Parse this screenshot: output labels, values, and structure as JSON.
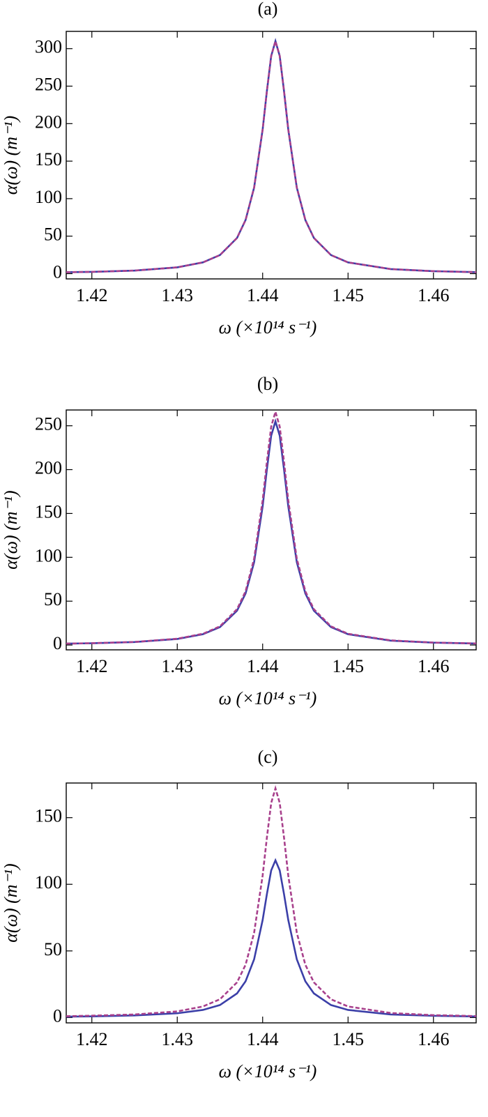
{
  "chart_data": [
    {
      "type": "line",
      "title": "(a)",
      "xlabel": "ω (×10¹⁴ s⁻¹)",
      "ylabel": "α(ω) (m⁻¹)",
      "x": [
        1.417,
        1.42,
        1.425,
        1.43,
        1.433,
        1.435,
        1.437,
        1.438,
        1.439,
        1.44,
        1.4405,
        1.441,
        1.4415,
        1.442,
        1.4425,
        1.443,
        1.444,
        1.445,
        1.446,
        1.448,
        1.45,
        1.455,
        1.46,
        1.465
      ],
      "series": [
        {
          "color": "#3b3fa8",
          "dashed": false,
          "values": [
            1.9,
            2.4,
            4.1,
            8.4,
            15.0,
            24.8,
            47.6,
            71.5,
            114.7,
            192.2,
            243.7,
            290.2,
            310,
            290.2,
            243.7,
            192.2,
            114.7,
            71.5,
            47.6,
            24.8,
            15.0,
            6.1,
            3.3,
            2.0
          ]
        },
        {
          "color": "#a8408c",
          "dashed": true,
          "values": [
            1.9,
            2.4,
            4.1,
            8.4,
            15.0,
            24.8,
            47.6,
            71.5,
            114.7,
            192.2,
            243.7,
            290.2,
            310,
            290.2,
            243.7,
            192.2,
            114.7,
            71.5,
            47.6,
            24.8,
            15.0,
            6.1,
            3.3,
            2.0
          ]
        }
      ],
      "xlim": [
        1.417,
        1.465
      ],
      "ylim": [
        -7,
        323
      ],
      "xticks": [
        1.42,
        1.43,
        1.44,
        1.45,
        1.46
      ],
      "yticks": [
        0,
        50,
        100,
        150,
        200,
        250,
        300
      ]
    },
    {
      "type": "line",
      "title": "(b)",
      "xlabel": "ω (×10¹⁴ s⁻¹)",
      "ylabel": "α(ω) (m⁻¹)",
      "x": [
        1.417,
        1.42,
        1.425,
        1.43,
        1.433,
        1.435,
        1.437,
        1.438,
        1.439,
        1.44,
        1.4405,
        1.441,
        1.4415,
        1.442,
        1.4425,
        1.443,
        1.444,
        1.445,
        1.446,
        1.448,
        1.45,
        1.455,
        1.46,
        1.465
      ],
      "series": [
        {
          "color": "#3b3fa8",
          "dashed": false,
          "values": [
            1.6,
            2.0,
            3.4,
            6.9,
            12.3,
            20.4,
            39.1,
            58.8,
            94.4,
            158.1,
            200.4,
            238.7,
            255,
            238.7,
            200.4,
            158.1,
            94.4,
            58.8,
            39.1,
            20.4,
            12.3,
            5.0,
            2.7,
            1.7
          ]
        },
        {
          "color": "#a8408c",
          "dashed": true,
          "values": [
            1.6,
            2.1,
            3.5,
            7.2,
            12.8,
            21.3,
            40.8,
            61.3,
            98.4,
            164.9,
            209.1,
            249.0,
            266,
            249.0,
            209.1,
            164.9,
            98.4,
            61.3,
            40.8,
            21.3,
            12.8,
            5.3,
            2.8,
            1.8
          ]
        }
      ],
      "xlim": [
        1.417,
        1.465
      ],
      "ylim": [
        -5.5,
        268
      ],
      "xticks": [
        1.42,
        1.43,
        1.44,
        1.45,
        1.46
      ],
      "yticks": [
        0,
        50,
        100,
        150,
        200,
        250
      ]
    },
    {
      "type": "line",
      "title": "(c)",
      "xlabel": "ω (×10¹⁴ s⁻¹)",
      "ylabel": "α(ω) (m⁻¹)",
      "x": [
        1.417,
        1.42,
        1.425,
        1.43,
        1.433,
        1.435,
        1.437,
        1.438,
        1.439,
        1.44,
        1.4405,
        1.441,
        1.4415,
        1.442,
        1.4425,
        1.443,
        1.444,
        1.445,
        1.446,
        1.448,
        1.45,
        1.455,
        1.46,
        1.465
      ],
      "series": [
        {
          "color": "#3b3fa8",
          "dashed": false,
          "values": [
            0.7,
            0.9,
            1.6,
            3.2,
            5.7,
            9.4,
            18.1,
            27.2,
            43.7,
            73.2,
            92.7,
            110.4,
            118,
            110.4,
            92.7,
            73.2,
            43.7,
            27.2,
            18.1,
            9.4,
            5.7,
            2.3,
            1.3,
            0.8
          ]
        },
        {
          "color": "#a8408c",
          "dashed": true,
          "values": [
            1.0,
            1.4,
            2.3,
            4.6,
            8.3,
            13.7,
            26.4,
            39.6,
            63.6,
            106.6,
            135.2,
            161.0,
            172,
            161.0,
            135.2,
            106.6,
            63.6,
            39.6,
            26.4,
            13.7,
            8.3,
            3.4,
            1.8,
            1.1
          ]
        }
      ],
      "xlim": [
        1.417,
        1.465
      ],
      "ylim": [
        -4,
        176
      ],
      "xticks": [
        1.42,
        1.43,
        1.44,
        1.45,
        1.46
      ],
      "yticks": [
        0,
        50,
        100,
        150
      ]
    }
  ]
}
